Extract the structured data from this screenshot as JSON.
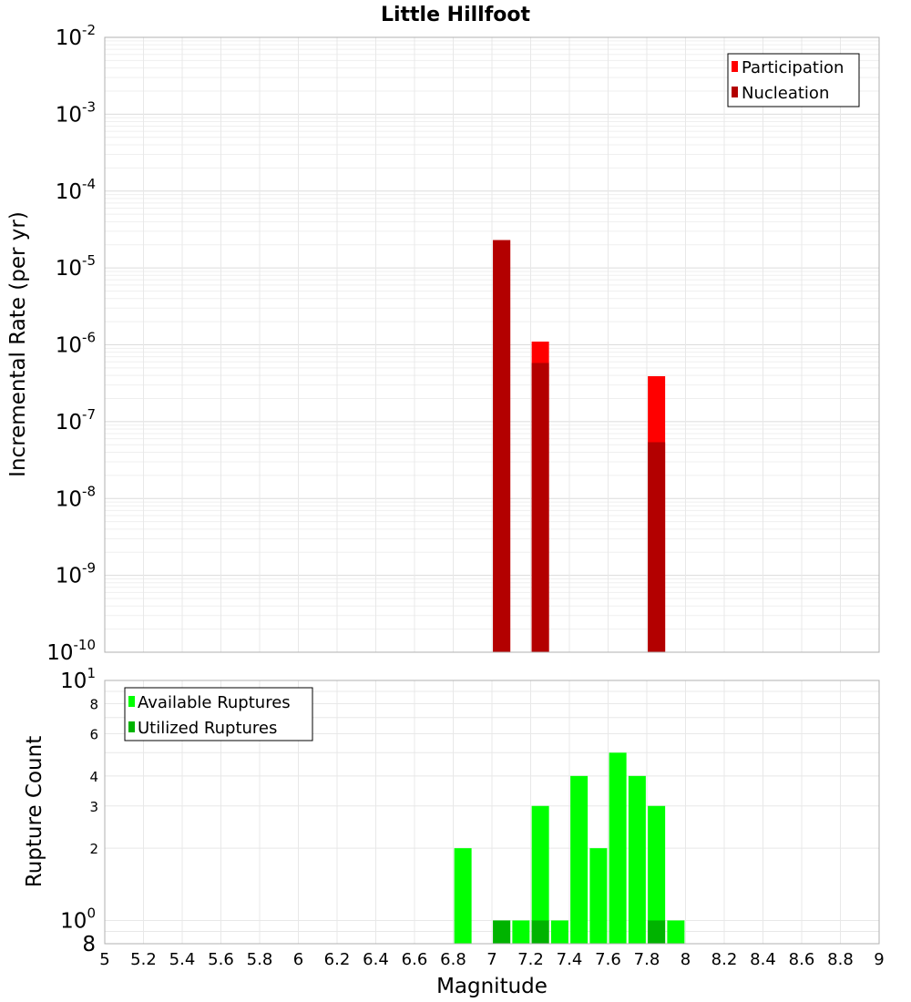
{
  "chart_data": [
    {
      "type": "bar",
      "title": "Little Hillfoot",
      "xlabel": "",
      "ylabel": "Incremental Rate (per yr)",
      "yscale": "log",
      "ylim": [
        1e-10,
        0.01
      ],
      "xlim": [
        5,
        9
      ],
      "grid": true,
      "legend_position": "top-right",
      "series": [
        {
          "name": "Participation",
          "color": "#ff0000",
          "x": [
            7.05,
            7.25,
            7.85
          ],
          "values": [
            2.3e-05,
            1.1e-06,
            3.9e-07
          ]
        },
        {
          "name": "Nucleation",
          "color": "#b30000",
          "x": [
            7.05,
            7.25,
            7.85
          ],
          "values": [
            2.3e-05,
            5.8e-07,
            5.4e-08
          ]
        }
      ],
      "y_ticks": [
        {
          "base": "10",
          "exp": "-2"
        },
        {
          "base": "10",
          "exp": "-3"
        },
        {
          "base": "10",
          "exp": "-4"
        },
        {
          "base": "10",
          "exp": "-5"
        },
        {
          "base": "10",
          "exp": "-6"
        },
        {
          "base": "10",
          "exp": "-7"
        },
        {
          "base": "10",
          "exp": "-8"
        },
        {
          "base": "10",
          "exp": "-9"
        },
        {
          "base": "10",
          "exp": "-10"
        }
      ]
    },
    {
      "type": "bar",
      "title": "",
      "xlabel": "Magnitude",
      "ylabel": "Rupture Count",
      "yscale": "log",
      "ylim": [
        0.8,
        10
      ],
      "xlim": [
        5,
        9
      ],
      "grid": true,
      "legend_position": "top-left",
      "series": [
        {
          "name": "Available Ruptures",
          "color": "#00ff00",
          "x": [
            6.85,
            7.05,
            7.15,
            7.25,
            7.35,
            7.45,
            7.55,
            7.65,
            7.75,
            7.85,
            7.95
          ],
          "values": [
            2,
            1,
            1,
            3,
            1,
            4,
            2,
            5,
            4,
            3,
            1
          ]
        },
        {
          "name": "Utilized Ruptures",
          "color": "#00b300",
          "x": [
            7.05,
            7.25,
            7.85
          ],
          "values": [
            1,
            1,
            1
          ]
        }
      ],
      "y_ticks_major": [
        {
          "value": 10,
          "base": "10",
          "exp": "1"
        },
        {
          "value": 1,
          "base": "10",
          "exp": "0"
        },
        {
          "value": 0.8,
          "base": "8",
          "exp": ""
        }
      ],
      "y_ticks_minor": [
        {
          "value": 8,
          "label": "8"
        },
        {
          "value": 6,
          "label": "6"
        },
        {
          "value": 4,
          "label": "4"
        },
        {
          "value": 3,
          "label": "3"
        },
        {
          "value": 2,
          "label": "2"
        }
      ],
      "x_ticks": [
        "5",
        "5.2",
        "5.4",
        "5.6",
        "5.8",
        "6",
        "6.2",
        "6.4",
        "6.6",
        "6.8",
        "7",
        "7.2",
        "7.4",
        "7.6",
        "7.8",
        "8",
        "8.2",
        "8.4",
        "8.6",
        "8.8",
        "9"
      ]
    }
  ]
}
